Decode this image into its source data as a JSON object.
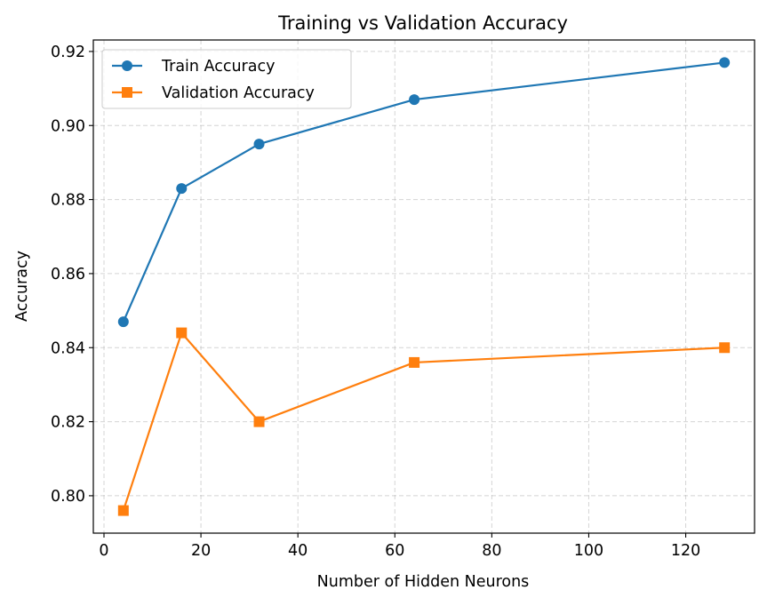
{
  "chart_data": {
    "type": "line",
    "title": "Training vs Validation Accuracy",
    "xlabel": "Number of Hidden Neurons",
    "ylabel": "Accuracy",
    "x": [
      4,
      16,
      32,
      64,
      128
    ],
    "series": [
      {
        "name": "Train Accuracy",
        "values": [
          0.847,
          0.883,
          0.895,
          0.907,
          0.917
        ],
        "color": "#1f77b4",
        "marker": "circle"
      },
      {
        "name": "Validation Accuracy",
        "values": [
          0.796,
          0.844,
          0.82,
          0.836,
          0.84
        ],
        "color": "#ff7f0e",
        "marker": "square"
      }
    ],
    "xlim": [
      -2.2,
      134.2
    ],
    "ylim": [
      0.7899,
      0.9231
    ],
    "xticks": [
      0,
      20,
      40,
      60,
      80,
      100,
      120
    ],
    "xtick_labels": [
      "0",
      "20",
      "40",
      "60",
      "80",
      "100",
      "120"
    ],
    "yticks": [
      0.8,
      0.82,
      0.84,
      0.86,
      0.88,
      0.9,
      0.92
    ],
    "ytick_labels": [
      "0.80",
      "0.82",
      "0.84",
      "0.86",
      "0.88",
      "0.90",
      "0.92"
    ],
    "grid": true,
    "grid_style": "dashed",
    "legend_position": "upper left"
  }
}
